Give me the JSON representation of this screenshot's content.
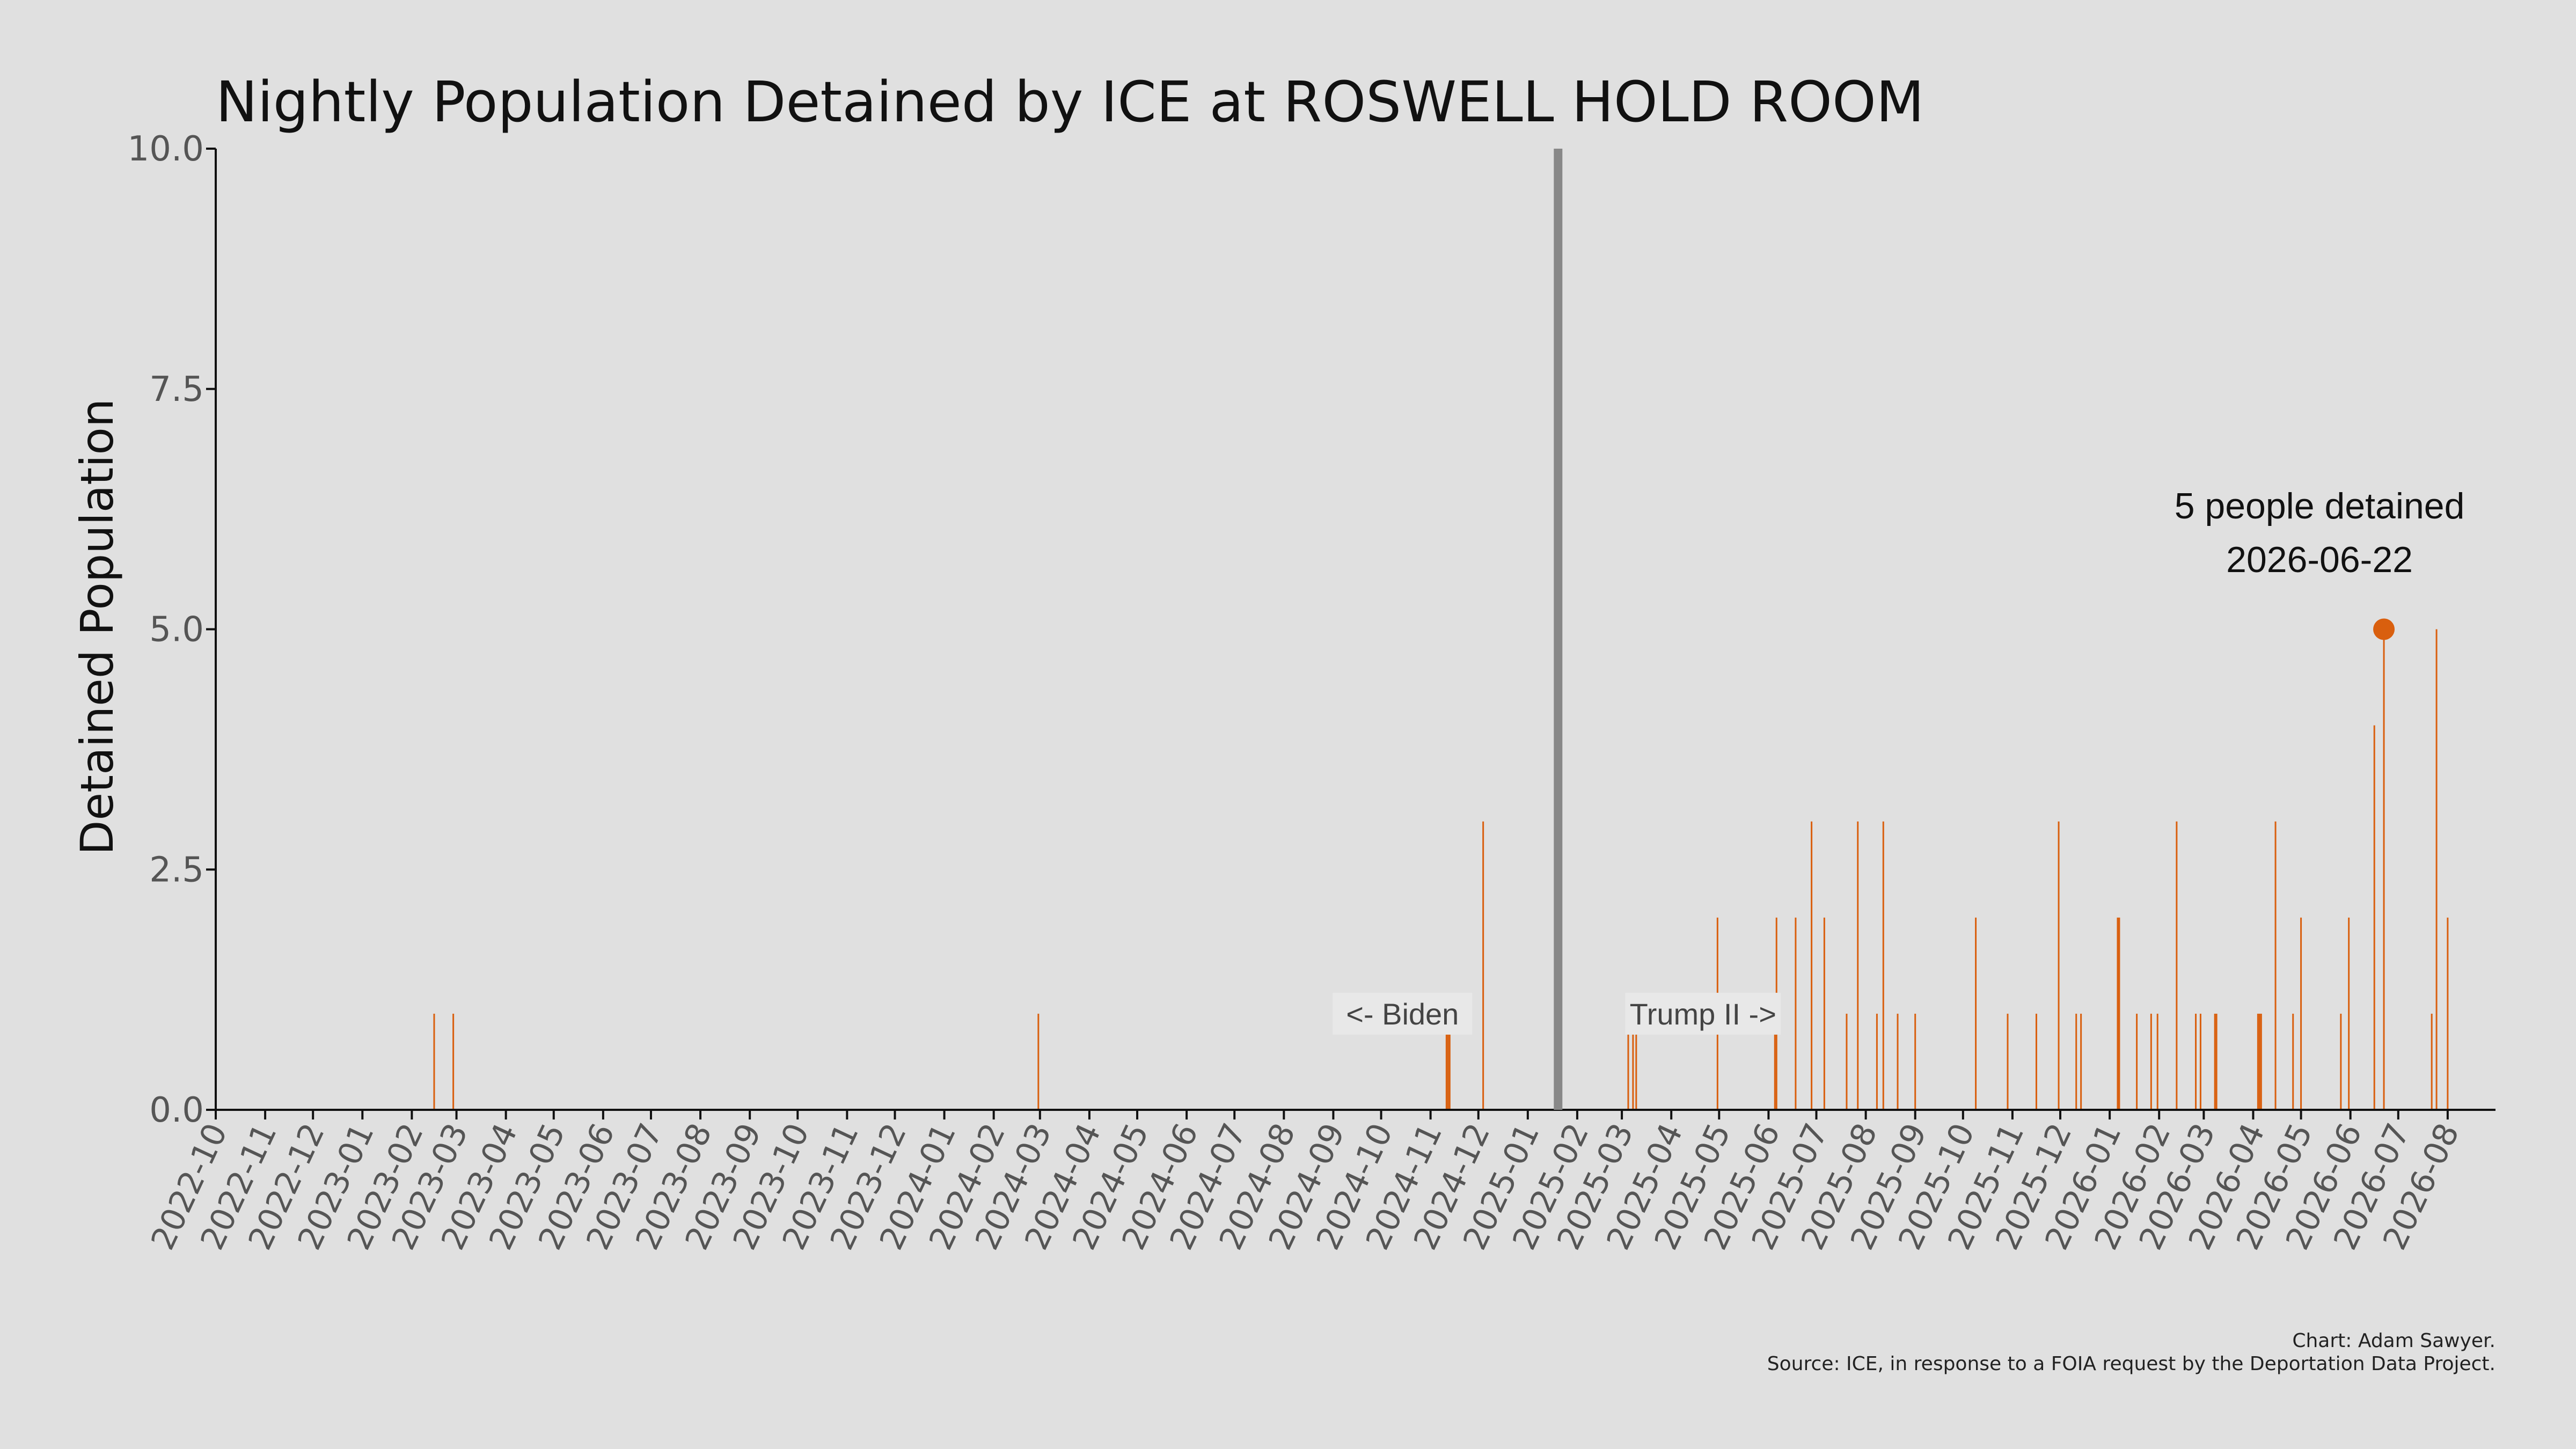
{
  "chart_data": {
    "type": "bar",
    "title": "Nightly Population Detained by ICE at ROSWELL HOLD ROOM",
    "xlabel": "",
    "ylabel": "Detained Population",
    "ylim": [
      0,
      10
    ],
    "yticks": [
      "0.0",
      "2.5",
      "5.0",
      "7.5",
      "10.0"
    ],
    "xlim": [
      "2022-10-01",
      "2026-08-31"
    ],
    "xticks": [
      "2022-10",
      "2022-11",
      "2022-12",
      "2023-01",
      "2023-02",
      "2023-03",
      "2023-04",
      "2023-05",
      "2023-06",
      "2023-07",
      "2023-08",
      "2023-09",
      "2023-10",
      "2023-11",
      "2023-12",
      "2024-01",
      "2024-02",
      "2024-03",
      "2024-04",
      "2024-05",
      "2024-06",
      "2024-07",
      "2024-08",
      "2024-09",
      "2024-10",
      "2024-11",
      "2024-12",
      "2025-01",
      "2025-02",
      "2025-03",
      "2025-04",
      "2025-05",
      "2025-06",
      "2025-07",
      "2025-08",
      "2025-09",
      "2025-10",
      "2025-11",
      "2025-12",
      "2026-01",
      "2026-02",
      "2026-03",
      "2026-04",
      "2026-05",
      "2026-06",
      "2026-07",
      "2026-08"
    ],
    "grid": false,
    "bar_color": "#d95f0e",
    "points": [
      {
        "date": "2023-02-15",
        "value": 1
      },
      {
        "date": "2023-02-27",
        "value": 1
      },
      {
        "date": "2024-02-29",
        "value": 1
      },
      {
        "date": "2024-11-11",
        "value": 1
      },
      {
        "date": "2024-11-12",
        "value": 1
      },
      {
        "date": "2024-11-13",
        "value": 1
      },
      {
        "date": "2024-12-04",
        "value": 3
      },
      {
        "date": "2025-03-05",
        "value": 1
      },
      {
        "date": "2025-03-08",
        "value": 1
      },
      {
        "date": "2025-03-10",
        "value": 1
      },
      {
        "date": "2025-04-30",
        "value": 2
      },
      {
        "date": "2025-06-05",
        "value": 1
      },
      {
        "date": "2025-06-06",
        "value": 2
      },
      {
        "date": "2025-06-18",
        "value": 2
      },
      {
        "date": "2025-06-28",
        "value": 3
      },
      {
        "date": "2025-07-06",
        "value": 2
      },
      {
        "date": "2025-07-20",
        "value": 1
      },
      {
        "date": "2025-07-27",
        "value": 3
      },
      {
        "date": "2025-08-08",
        "value": 1
      },
      {
        "date": "2025-08-12",
        "value": 3
      },
      {
        "date": "2025-08-21",
        "value": 1
      },
      {
        "date": "2025-09-01",
        "value": 1
      },
      {
        "date": "2025-10-09",
        "value": 2
      },
      {
        "date": "2025-10-29",
        "value": 1
      },
      {
        "date": "2025-11-16",
        "value": 1
      },
      {
        "date": "2025-11-30",
        "value": 3
      },
      {
        "date": "2025-12-11",
        "value": 1
      },
      {
        "date": "2025-12-14",
        "value": 1
      },
      {
        "date": "2026-01-06",
        "value": 2
      },
      {
        "date": "2026-01-07",
        "value": 2
      },
      {
        "date": "2026-01-18",
        "value": 1
      },
      {
        "date": "2026-01-27",
        "value": 1
      },
      {
        "date": "2026-01-31",
        "value": 1
      },
      {
        "date": "2026-02-12",
        "value": 3
      },
      {
        "date": "2026-02-24",
        "value": 1
      },
      {
        "date": "2026-02-27",
        "value": 1
      },
      {
        "date": "2026-03-08",
        "value": 1
      },
      {
        "date": "2026-03-09",
        "value": 1
      },
      {
        "date": "2026-04-04",
        "value": 1
      },
      {
        "date": "2026-04-05",
        "value": 1
      },
      {
        "date": "2026-04-06",
        "value": 1
      },
      {
        "date": "2026-04-15",
        "value": 3
      },
      {
        "date": "2026-04-26",
        "value": 1
      },
      {
        "date": "2026-05-01",
        "value": 2
      },
      {
        "date": "2026-05-26",
        "value": 1
      },
      {
        "date": "2026-05-31",
        "value": 2
      },
      {
        "date": "2026-06-16",
        "value": 4
      },
      {
        "date": "2026-06-22",
        "value": 5
      },
      {
        "date": "2026-07-22",
        "value": 1
      },
      {
        "date": "2026-07-25",
        "value": 5
      },
      {
        "date": "2026-08-01",
        "value": 2
      }
    ],
    "divider": {
      "date": "2025-01-20",
      "color": "#888888"
    },
    "era_labels": {
      "before": "<- Biden",
      "after": "Trump II ->",
      "value": 1
    },
    "peak": {
      "date": "2026-06-22",
      "value": 5,
      "line1": "5 people detained",
      "line2": "2026-06-22"
    },
    "credit": "Chart: Adam Sawyer.",
    "source": "Source: ICE, in response to a FOIA request by the Deportation Data Project."
  }
}
